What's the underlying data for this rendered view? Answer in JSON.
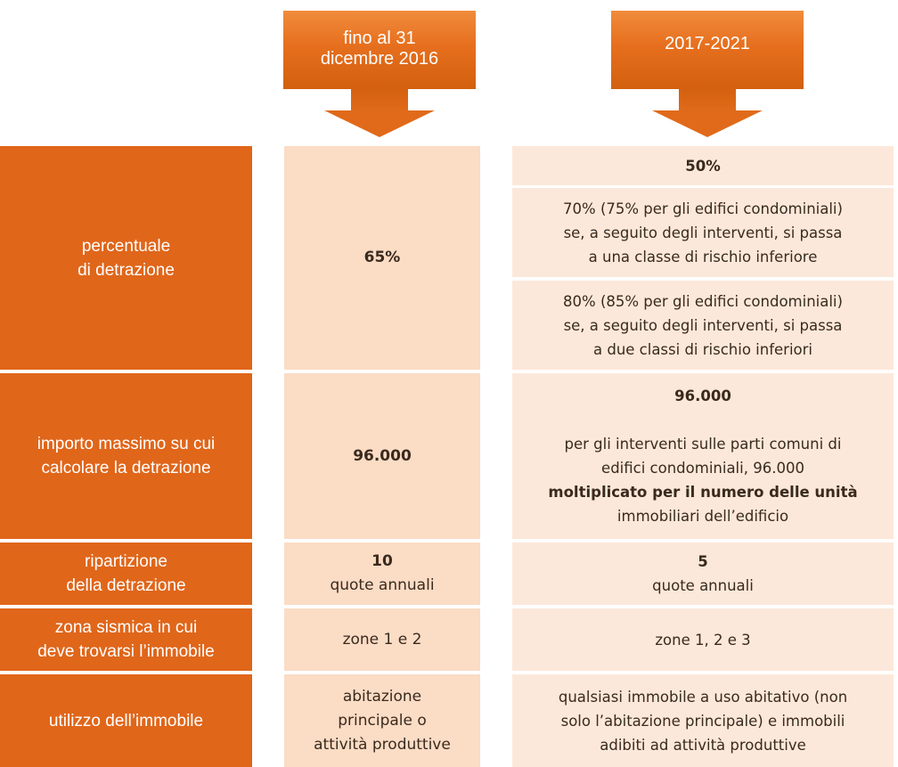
{
  "headers": {
    "col1": [
      "fino al 31",
      "dicembre 2016"
    ],
    "col2": "2017-2021"
  },
  "rows": {
    "percentuale": {
      "label": [
        "percentuale",
        "di detrazione"
      ],
      "before": "65%",
      "after": {
        "base": "50%",
        "opt1": [
          "70% (75% per gli edifici condominiali)",
          "se, a seguito degli interventi, si passa",
          "a una classe di rischio inferiore"
        ],
        "opt2": [
          "80% (85% per gli edifici condominiali)",
          "se, a seguito degli interventi, si passa",
          "a due classi di rischio inferiori"
        ]
      }
    },
    "importo": {
      "label": [
        "importo massimo su cui",
        "calcolare la detrazione"
      ],
      "before": "96.000",
      "after": {
        "value": "96.000",
        "note": [
          "per gli interventi sulle parti comuni di",
          "edifici condominiali, 96.000",
          "moltiplicato per il numero delle unità",
          "immobiliari dell’edificio"
        ]
      }
    },
    "ripartizione": {
      "label": [
        "ripartizione",
        "della detrazione"
      ],
      "before": {
        "value": "10",
        "unit": "quote annuali"
      },
      "after": {
        "value": "5",
        "unit": "quote annuali"
      }
    },
    "zona": {
      "label": [
        "zona sismica in cui",
        "deve trovarsi l’immobile"
      ],
      "before": "zone 1 e 2",
      "after": "zone 1, 2 e 3"
    },
    "utilizzo": {
      "label": "utilizzo dell’immobile",
      "before": [
        "abitazione",
        "principale o",
        "attività produttive"
      ],
      "after": [
        "qualsiasi immobile a uso abitativo (non",
        "solo l’abitazione principale) e immobili",
        "adibiti ad attività produttive"
      ]
    }
  },
  "colors": {
    "label_bg": "#e0661a",
    "before_bg": "#fbdcc5",
    "after_bg": "#fce8da",
    "header_bg": "#e66f1e"
  }
}
